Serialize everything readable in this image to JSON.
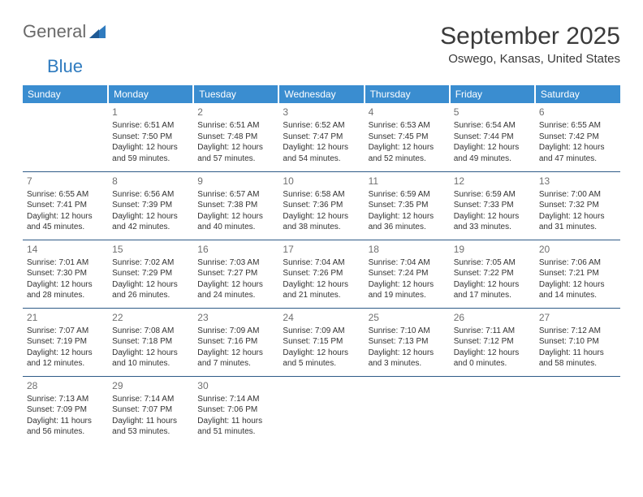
{
  "brand": {
    "word1": "General",
    "word2": "Blue"
  },
  "title": "September 2025",
  "location": "Oswego, Kansas, United States",
  "colors": {
    "header_bg": "#3a8dd0",
    "header_text": "#ffffff",
    "rule": "#2f5b87",
    "text": "#333333",
    "daynum": "#707070",
    "logo_gray": "#6a6a6a",
    "logo_blue": "#2f7bbf"
  },
  "weekdays": [
    "Sunday",
    "Monday",
    "Tuesday",
    "Wednesday",
    "Thursday",
    "Friday",
    "Saturday"
  ],
  "weeks": [
    [
      null,
      {
        "n": "1",
        "sr": "6:51 AM",
        "ss": "7:50 PM",
        "dl": "12 hours and 59 minutes."
      },
      {
        "n": "2",
        "sr": "6:51 AM",
        "ss": "7:48 PM",
        "dl": "12 hours and 57 minutes."
      },
      {
        "n": "3",
        "sr": "6:52 AM",
        "ss": "7:47 PM",
        "dl": "12 hours and 54 minutes."
      },
      {
        "n": "4",
        "sr": "6:53 AM",
        "ss": "7:45 PM",
        "dl": "12 hours and 52 minutes."
      },
      {
        "n": "5",
        "sr": "6:54 AM",
        "ss": "7:44 PM",
        "dl": "12 hours and 49 minutes."
      },
      {
        "n": "6",
        "sr": "6:55 AM",
        "ss": "7:42 PM",
        "dl": "12 hours and 47 minutes."
      }
    ],
    [
      {
        "n": "7",
        "sr": "6:55 AM",
        "ss": "7:41 PM",
        "dl": "12 hours and 45 minutes."
      },
      {
        "n": "8",
        "sr": "6:56 AM",
        "ss": "7:39 PM",
        "dl": "12 hours and 42 minutes."
      },
      {
        "n": "9",
        "sr": "6:57 AM",
        "ss": "7:38 PM",
        "dl": "12 hours and 40 minutes."
      },
      {
        "n": "10",
        "sr": "6:58 AM",
        "ss": "7:36 PM",
        "dl": "12 hours and 38 minutes."
      },
      {
        "n": "11",
        "sr": "6:59 AM",
        "ss": "7:35 PM",
        "dl": "12 hours and 36 minutes."
      },
      {
        "n": "12",
        "sr": "6:59 AM",
        "ss": "7:33 PM",
        "dl": "12 hours and 33 minutes."
      },
      {
        "n": "13",
        "sr": "7:00 AM",
        "ss": "7:32 PM",
        "dl": "12 hours and 31 minutes."
      }
    ],
    [
      {
        "n": "14",
        "sr": "7:01 AM",
        "ss": "7:30 PM",
        "dl": "12 hours and 28 minutes."
      },
      {
        "n": "15",
        "sr": "7:02 AM",
        "ss": "7:29 PM",
        "dl": "12 hours and 26 minutes."
      },
      {
        "n": "16",
        "sr": "7:03 AM",
        "ss": "7:27 PM",
        "dl": "12 hours and 24 minutes."
      },
      {
        "n": "17",
        "sr": "7:04 AM",
        "ss": "7:26 PM",
        "dl": "12 hours and 21 minutes."
      },
      {
        "n": "18",
        "sr": "7:04 AM",
        "ss": "7:24 PM",
        "dl": "12 hours and 19 minutes."
      },
      {
        "n": "19",
        "sr": "7:05 AM",
        "ss": "7:22 PM",
        "dl": "12 hours and 17 minutes."
      },
      {
        "n": "20",
        "sr": "7:06 AM",
        "ss": "7:21 PM",
        "dl": "12 hours and 14 minutes."
      }
    ],
    [
      {
        "n": "21",
        "sr": "7:07 AM",
        "ss": "7:19 PM",
        "dl": "12 hours and 12 minutes."
      },
      {
        "n": "22",
        "sr": "7:08 AM",
        "ss": "7:18 PM",
        "dl": "12 hours and 10 minutes."
      },
      {
        "n": "23",
        "sr": "7:09 AM",
        "ss": "7:16 PM",
        "dl": "12 hours and 7 minutes."
      },
      {
        "n": "24",
        "sr": "7:09 AM",
        "ss": "7:15 PM",
        "dl": "12 hours and 5 minutes."
      },
      {
        "n": "25",
        "sr": "7:10 AM",
        "ss": "7:13 PM",
        "dl": "12 hours and 3 minutes."
      },
      {
        "n": "26",
        "sr": "7:11 AM",
        "ss": "7:12 PM",
        "dl": "12 hours and 0 minutes."
      },
      {
        "n": "27",
        "sr": "7:12 AM",
        "ss": "7:10 PM",
        "dl": "11 hours and 58 minutes."
      }
    ],
    [
      {
        "n": "28",
        "sr": "7:13 AM",
        "ss": "7:09 PM",
        "dl": "11 hours and 56 minutes."
      },
      {
        "n": "29",
        "sr": "7:14 AM",
        "ss": "7:07 PM",
        "dl": "11 hours and 53 minutes."
      },
      {
        "n": "30",
        "sr": "7:14 AM",
        "ss": "7:06 PM",
        "dl": "11 hours and 51 minutes."
      },
      null,
      null,
      null,
      null
    ]
  ],
  "labels": {
    "sunrise": "Sunrise:",
    "sunset": "Sunset:",
    "daylight": "Daylight:"
  }
}
